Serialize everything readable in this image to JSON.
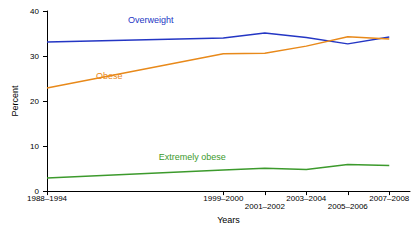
{
  "chart_data": {
    "type": "line",
    "x_label": "Years",
    "y_label": "Percent",
    "x": [
      1991,
      1999.5,
      2001.5,
      2003.5,
      2005.5,
      2007.5
    ],
    "xlim": [
      1991,
      2008.5
    ],
    "xticks": [
      {
        "value": 1991,
        "label": "1988–1994"
      },
      {
        "value": 1999.5,
        "label": "1999–2000"
      },
      {
        "value": 2001.5,
        "label": "2001–2002"
      },
      {
        "value": 2003.5,
        "label": "2003–2004"
      },
      {
        "value": 2005.5,
        "label": "2005–2006"
      },
      {
        "value": 2007.5,
        "label": "2007–2008"
      }
    ],
    "ylim": [
      0,
      40
    ],
    "yticks": [
      0,
      10,
      20,
      30,
      40
    ],
    "grid": false,
    "series": [
      {
        "name": "Overweight",
        "color": "#2436c4",
        "values": [
          33.1,
          34.0,
          35.1,
          34.1,
          32.7,
          34.2
        ]
      },
      {
        "name": "Obese",
        "color": "#e8891a",
        "values": [
          22.9,
          30.5,
          30.6,
          32.2,
          34.3,
          33.8
        ]
      },
      {
        "name": "Extremely obese",
        "color": "#3c9a2c",
        "values": [
          2.9,
          4.7,
          5.1,
          4.8,
          5.9,
          5.7
        ]
      }
    ]
  }
}
